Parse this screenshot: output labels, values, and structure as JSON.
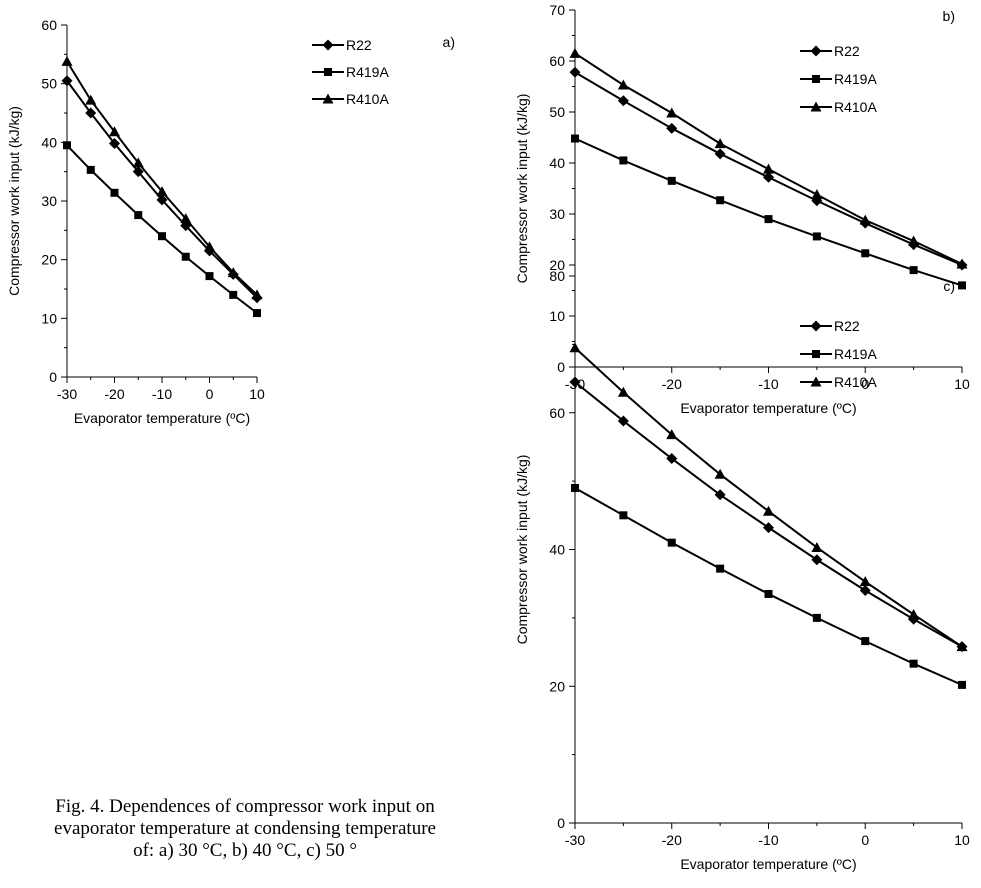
{
  "chart_data": [
    {
      "type": "line",
      "panel_label": "a)",
      "xlabel": "Evaporator temperature (ºC)",
      "ylabel": "Compressor work input (kJ/kg)",
      "xlim": [
        -30,
        10
      ],
      "ylim": [
        0,
        60
      ],
      "xticks": [
        -30,
        -20,
        -10,
        0,
        10
      ],
      "yticks": [
        0,
        10,
        20,
        30,
        40,
        50,
        60
      ],
      "x": [
        -30,
        -25,
        -20,
        -15,
        -10,
        -5,
        0,
        5,
        10
      ],
      "series": [
        {
          "name": "R22",
          "marker": "diamond",
          "values": [
            50.5,
            45.0,
            39.8,
            35.0,
            30.2,
            25.8,
            21.5,
            17.5,
            13.5
          ]
        },
        {
          "name": "R419A",
          "marker": "square",
          "values": [
            39.5,
            35.3,
            31.4,
            27.6,
            24.0,
            20.5,
            17.2,
            14.0,
            10.9
          ]
        },
        {
          "name": "R410A",
          "marker": "triangle",
          "values": [
            53.8,
            47.2,
            41.8,
            36.5,
            31.6,
            27.0,
            22.2,
            17.8,
            14.0
          ]
        }
      ],
      "legend": "top-right",
      "grid": false
    },
    {
      "type": "line",
      "panel_label": "b)",
      "xlabel": "Evaporator temperature (ºC)",
      "ylabel": "Compressor work input (kJ/kg)",
      "xlim": [
        -30,
        10
      ],
      "ylim": [
        0,
        70
      ],
      "xticks": [
        -30,
        -20,
        -10,
        0,
        10
      ],
      "yticks": [
        0,
        10,
        20,
        30,
        40,
        50,
        60,
        70
      ],
      "x": [
        -30,
        -25,
        -20,
        -15,
        -10,
        -5,
        0,
        5,
        10
      ],
      "series": [
        {
          "name": "R22",
          "marker": "diamond",
          "values": [
            57.8,
            52.2,
            46.8,
            41.8,
            37.2,
            32.6,
            28.2,
            24.0,
            20.0
          ]
        },
        {
          "name": "R419A",
          "marker": "square",
          "values": [
            44.8,
            40.5,
            36.5,
            32.7,
            29.0,
            25.6,
            22.3,
            19.0,
            16.0
          ]
        },
        {
          "name": "R410A",
          "marker": "triangle",
          "values": [
            61.5,
            55.3,
            49.8,
            43.8,
            38.8,
            33.8,
            28.8,
            24.7,
            20.2
          ]
        }
      ],
      "legend": "top-right",
      "grid": false
    },
    {
      "type": "line",
      "panel_label": "c)",
      "xlabel": "Evaporator temperature (ºC)",
      "ylabel": "Compressor work input (kJ/kg)",
      "xlim": [
        -30,
        10
      ],
      "ylim": [
        0,
        80
      ],
      "xticks": [
        -30,
        -20,
        -10,
        0,
        10
      ],
      "yticks": [
        0,
        20,
        40,
        60,
        80
      ],
      "x": [
        -30,
        -25,
        -20,
        -15,
        -10,
        -5,
        0,
        5,
        10
      ],
      "series": [
        {
          "name": "R22",
          "marker": "diamond",
          "values": [
            64.5,
            58.8,
            53.3,
            48.0,
            43.2,
            38.5,
            34.0,
            29.8,
            25.8
          ]
        },
        {
          "name": "R419A",
          "marker": "square",
          "values": [
            49.0,
            45.0,
            41.0,
            37.2,
            33.5,
            30.0,
            26.6,
            23.3,
            20.2
          ]
        },
        {
          "name": "R410A",
          "marker": "triangle",
          "values": [
            69.5,
            63.0,
            56.8,
            51.0,
            45.6,
            40.3,
            35.3,
            30.5,
            25.8
          ]
        }
      ],
      "legend": "top-right",
      "grid": false
    }
  ],
  "caption": {
    "line1": "Fig. 4. Dependences of compressor work input on",
    "line2": "evaporator temperature at condensing temperature",
    "line3": "of: a) 30 °C, b) 40 °C, c) 50 °"
  }
}
